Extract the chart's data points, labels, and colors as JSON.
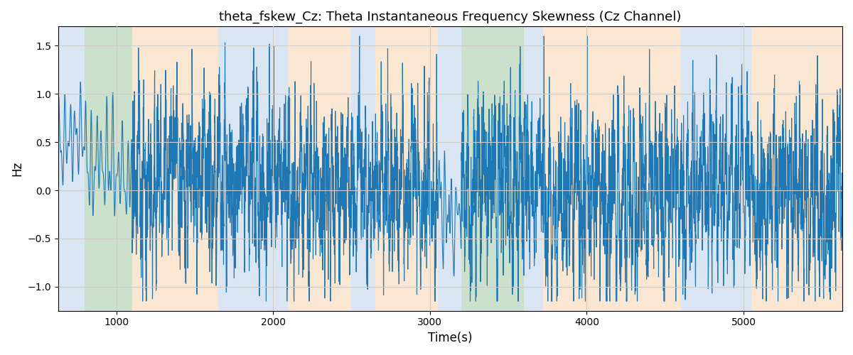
{
  "title": "theta_fskew_Cz: Theta Instantaneous Frequency Skewness (Cz Channel)",
  "xlabel": "Time(s)",
  "ylabel": "Hz",
  "xlim": [
    630,
    5630
  ],
  "ylim": [
    -1.25,
    1.7
  ],
  "yticks": [
    -1.0,
    -0.5,
    0.0,
    0.5,
    1.0,
    1.5
  ],
  "xticks": [
    1000,
    2000,
    3000,
    4000,
    5000
  ],
  "line_color": "#1f77b4",
  "line_width": 0.8,
  "bg_color": "#ffffff",
  "grid_color": "#cccccc",
  "colored_spans": [
    {
      "xmin": 620,
      "xmax": 800,
      "color": "#adc6e8",
      "alpha": 0.45
    },
    {
      "xmin": 800,
      "xmax": 1100,
      "color": "#8fbd8f",
      "alpha": 0.45
    },
    {
      "xmin": 1100,
      "xmax": 1650,
      "color": "#f5c89a",
      "alpha": 0.45
    },
    {
      "xmin": 1650,
      "xmax": 2100,
      "color": "#adc6e8",
      "alpha": 0.45
    },
    {
      "xmin": 2100,
      "xmax": 2500,
      "color": "#f5c89a",
      "alpha": 0.45
    },
    {
      "xmin": 2500,
      "xmax": 2650,
      "color": "#adc6e8",
      "alpha": 0.45
    },
    {
      "xmin": 2650,
      "xmax": 3050,
      "color": "#f5c89a",
      "alpha": 0.45
    },
    {
      "xmin": 3050,
      "xmax": 3200,
      "color": "#adc6e8",
      "alpha": 0.45
    },
    {
      "xmin": 3200,
      "xmax": 3600,
      "color": "#8fbd8f",
      "alpha": 0.45
    },
    {
      "xmin": 3600,
      "xmax": 3720,
      "color": "#adc6e8",
      "alpha": 0.45
    },
    {
      "xmin": 3720,
      "xmax": 4600,
      "color": "#f5c89a",
      "alpha": 0.45
    },
    {
      "xmin": 4600,
      "xmax": 5050,
      "color": "#adc6e8",
      "alpha": 0.45
    },
    {
      "xmin": 5050,
      "xmax": 5630,
      "color": "#f5c89a",
      "alpha": 0.45
    }
  ],
  "t_start": 630,
  "t_end": 5630,
  "n_points": 6000
}
